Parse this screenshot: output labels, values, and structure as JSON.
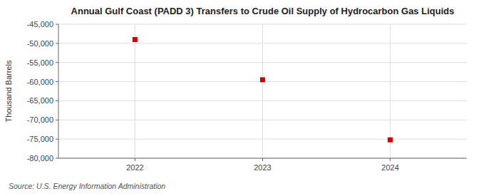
{
  "chart_data": {
    "type": "scatter",
    "title": "Annual Gulf Coast (PADD 3) Transfers to Crude Oil Supply of Hydrocarbon Gas Liquids",
    "ylabel": "Thousand Barrels",
    "annotation": "Source: U.S. Energy Information Administration",
    "x": [
      2022,
      2023,
      2024
    ],
    "values": [
      -49000,
      -59500,
      -75200
    ],
    "color": "#cc0000",
    "marker": "square",
    "xlim": [
      2021.4,
      2024.6
    ],
    "xticks": [
      2022,
      2023,
      2024
    ],
    "ylim": [
      -80000,
      -45000
    ],
    "yticks": [
      {
        "value": -80000,
        "label": "-80,000"
      },
      {
        "value": -75000,
        "label": "-75,000"
      },
      {
        "value": -70000,
        "label": "-70,000"
      },
      {
        "value": -65000,
        "label": "-65,000"
      },
      {
        "value": -60000,
        "label": "-60,000"
      },
      {
        "value": -55000,
        "label": "-55,000"
      },
      {
        "value": -50000,
        "label": "-50,000"
      },
      {
        "value": -45000,
        "label": "-45,000"
      }
    ],
    "grid": true
  }
}
